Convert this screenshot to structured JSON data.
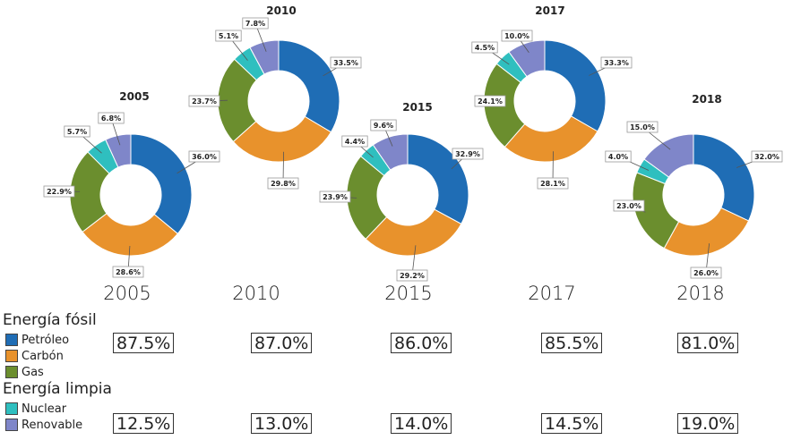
{
  "chart_data": [
    {
      "type": "pie",
      "title": "2005",
      "categories": [
        "Petróleo",
        "Carbón",
        "Gas",
        "Nuclear",
        "Renovable"
      ],
      "values": [
        36.0,
        28.6,
        22.9,
        5.7,
        6.8
      ],
      "labels": [
        "36.0%",
        "28.6%",
        "22.9%",
        "5.7%",
        "6.8%"
      ]
    },
    {
      "type": "pie",
      "title": "2010",
      "categories": [
        "Petróleo",
        "Carbón",
        "Gas",
        "Nuclear",
        "Renovable"
      ],
      "values": [
        33.5,
        29.8,
        23.7,
        5.1,
        7.8
      ],
      "labels": [
        "33.5%",
        "29.8%",
        "23.7%",
        "5.1%",
        "7.8%"
      ]
    },
    {
      "type": "pie",
      "title": "2015",
      "categories": [
        "Petróleo",
        "Carbón",
        "Gas",
        "Nuclear",
        "Renovable"
      ],
      "values": [
        32.9,
        29.2,
        23.9,
        4.4,
        9.6
      ],
      "labels": [
        "32.9%",
        "29.2%",
        "23.9%",
        "4.4%",
        "9.6%"
      ]
    },
    {
      "type": "pie",
      "title": "2017",
      "categories": [
        "Petróleo",
        "Carbón",
        "Gas",
        "Nuclear",
        "Renovable"
      ],
      "values": [
        33.3,
        28.1,
        24.1,
        4.5,
        10.0
      ],
      "labels": [
        "33.3%",
        "28.1%",
        "24.1%",
        "4.5%",
        "10.0%"
      ]
    },
    {
      "type": "pie",
      "title": "2018",
      "categories": [
        "Petróleo",
        "Carbón",
        "Gas",
        "Nuclear",
        "Renovable"
      ],
      "values": [
        32.0,
        26.0,
        23.0,
        4.0,
        15.0
      ],
      "labels": [
        "32.0%",
        "26.0%",
        "23.0%",
        "4.0%",
        "15.0%"
      ]
    }
  ],
  "colors": {
    "petroleo": "#1f6db5",
    "carbon": "#e8922c",
    "gas": "#6b8e2e",
    "nuclear": "#2fbfbf",
    "renovable": "#7f86c9"
  },
  "years": [
    "2005",
    "2010",
    "2015",
    "2017",
    "2018"
  ],
  "legend": {
    "fossil_title": "Energía fósil",
    "clean_title": "Energía limpia",
    "items": [
      "Petróleo",
      "Carbón",
      "Gas",
      "Nuclear",
      "Renovable"
    ]
  },
  "fossil_totals": [
    "87.5%",
    "87.0%",
    "86.0%",
    "85.5%",
    "81.0%"
  ],
  "clean_totals": [
    "12.5%",
    "13.0%",
    "14.0%",
    "14.5%",
    "19.0%"
  ]
}
